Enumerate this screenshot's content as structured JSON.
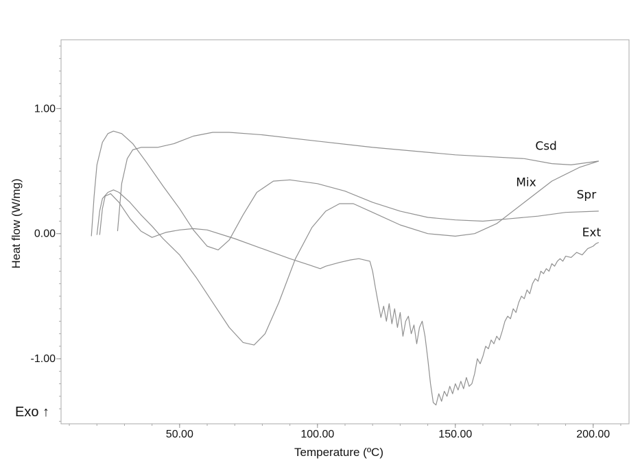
{
  "chart_data": {
    "type": "line",
    "xlabel": "Temperature (ºC)",
    "ylabel": "Heat flow (W/mg)",
    "annotation": "Exo ↑",
    "xlim": [
      7,
      213
    ],
    "ylim": [
      -1.52,
      1.55
    ],
    "x_ticks": [
      50,
      100,
      150,
      200
    ],
    "x_tick_labels": [
      "50.00",
      "100.00",
      "150.00",
      "200.00"
    ],
    "y_ticks": [
      1.0,
      0.0,
      -1.0
    ],
    "y_tick_labels": [
      "1.00",
      "0.00",
      "-1.00"
    ],
    "grid": false,
    "line_color": "#909090",
    "series": [
      {
        "name": "Csd",
        "label_x": 179,
        "label_y": 0.67,
        "points": [
          [
            27.5,
            0.02
          ],
          [
            29,
            0.4
          ],
          [
            31,
            0.6
          ],
          [
            33,
            0.67
          ],
          [
            36,
            0.69
          ],
          [
            42,
            0.69
          ],
          [
            48,
            0.72
          ],
          [
            55,
            0.78
          ],
          [
            62,
            0.81
          ],
          [
            68,
            0.81
          ],
          [
            80,
            0.79
          ],
          [
            100,
            0.74
          ],
          [
            120,
            0.69
          ],
          [
            150,
            0.63
          ],
          [
            175,
            0.6
          ],
          [
            185,
            0.56
          ],
          [
            192,
            0.55
          ],
          [
            202,
            0.58
          ]
        ]
      },
      {
        "name": "Mix",
        "label_x": 172,
        "label_y": 0.38,
        "points": [
          [
            18,
            -0.02
          ],
          [
            19,
            0.3
          ],
          [
            20,
            0.55
          ],
          [
            22,
            0.73
          ],
          [
            24,
            0.8
          ],
          [
            26,
            0.82
          ],
          [
            29,
            0.8
          ],
          [
            33,
            0.72
          ],
          [
            38,
            0.57
          ],
          [
            44,
            0.38
          ],
          [
            50,
            0.2
          ],
          [
            55,
            0.03
          ],
          [
            60,
            -0.1
          ],
          [
            64,
            -0.13
          ],
          [
            68,
            -0.05
          ],
          [
            73,
            0.15
          ],
          [
            78,
            0.33
          ],
          [
            84,
            0.42
          ],
          [
            90,
            0.43
          ],
          [
            100,
            0.4
          ],
          [
            110,
            0.34
          ],
          [
            120,
            0.25
          ],
          [
            130,
            0.18
          ],
          [
            140,
            0.13
          ],
          [
            150,
            0.11
          ],
          [
            160,
            0.1
          ],
          [
            170,
            0.12
          ],
          [
            180,
            0.14
          ],
          [
            190,
            0.17
          ],
          [
            202,
            0.18
          ]
        ]
      },
      {
        "name": "Spr",
        "label_x": 194,
        "label_y": 0.28,
        "points": [
          [
            20,
            -0.01
          ],
          [
            21,
            0.18
          ],
          [
            22,
            0.28
          ],
          [
            24,
            0.33
          ],
          [
            26,
            0.35
          ],
          [
            28,
            0.33
          ],
          [
            32,
            0.25
          ],
          [
            36,
            0.15
          ],
          [
            40,
            0.06
          ],
          [
            44,
            -0.04
          ],
          [
            50,
            -0.17
          ],
          [
            56,
            -0.35
          ],
          [
            62,
            -0.55
          ],
          [
            68,
            -0.75
          ],
          [
            73,
            -0.87
          ],
          [
            77,
            -0.89
          ],
          [
            81,
            -0.8
          ],
          [
            86,
            -0.55
          ],
          [
            92,
            -0.2
          ],
          [
            98,
            0.05
          ],
          [
            103,
            0.18
          ],
          [
            108,
            0.24
          ],
          [
            113,
            0.24
          ],
          [
            120,
            0.17
          ],
          [
            130,
            0.07
          ],
          [
            140,
            0.0
          ],
          [
            150,
            -0.02
          ],
          [
            157,
            0.0
          ],
          [
            165,
            0.08
          ],
          [
            175,
            0.25
          ],
          [
            185,
            0.42
          ],
          [
            195,
            0.53
          ],
          [
            202,
            0.58
          ]
        ]
      },
      {
        "name": "Ext",
        "label_x": 196,
        "label_y": -0.02,
        "points": [
          [
            21,
            -0.01
          ],
          [
            22,
            0.2
          ],
          [
            23,
            0.3
          ],
          [
            25,
            0.32
          ],
          [
            28,
            0.25
          ],
          [
            32,
            0.12
          ],
          [
            36,
            0.02
          ],
          [
            40,
            -0.03
          ],
          [
            45,
            0.01
          ],
          [
            50,
            0.03
          ],
          [
            55,
            0.04
          ],
          [
            60,
            0.03
          ],
          [
            70,
            -0.04
          ],
          [
            80,
            -0.12
          ],
          [
            90,
            -0.2
          ],
          [
            97,
            -0.25
          ],
          [
            101,
            -0.28
          ],
          [
            103,
            -0.26
          ],
          [
            108,
            -0.23
          ],
          [
            112,
            -0.21
          ],
          [
            115,
            -0.2
          ],
          [
            119,
            -0.22
          ],
          [
            120,
            -0.3
          ],
          [
            121,
            -0.43
          ],
          [
            122,
            -0.55
          ],
          [
            123,
            -0.67
          ],
          [
            124,
            -0.58
          ],
          [
            125,
            -0.7
          ],
          [
            126,
            -0.56
          ],
          [
            127,
            -0.72
          ],
          [
            128,
            -0.6
          ],
          [
            129,
            -0.75
          ],
          [
            130,
            -0.63
          ],
          [
            131,
            -0.82
          ],
          [
            132,
            -0.7
          ],
          [
            133,
            -0.66
          ],
          [
            134,
            -0.8
          ],
          [
            135,
            -0.73
          ],
          [
            136,
            -0.88
          ],
          [
            137,
            -0.75
          ],
          [
            138,
            -0.7
          ],
          [
            139,
            -0.82
          ],
          [
            140,
            -1.0
          ],
          [
            141,
            -1.2
          ],
          [
            142,
            -1.35
          ],
          [
            143,
            -1.37
          ],
          [
            144,
            -1.28
          ],
          [
            145,
            -1.34
          ],
          [
            146,
            -1.26
          ],
          [
            147,
            -1.3
          ],
          [
            148,
            -1.22
          ],
          [
            149,
            -1.28
          ],
          [
            150,
            -1.2
          ],
          [
            151,
            -1.25
          ],
          [
            152,
            -1.18
          ],
          [
            153,
            -1.24
          ],
          [
            154,
            -1.15
          ],
          [
            155,
            -1.22
          ],
          [
            156,
            -1.2
          ],
          [
            157,
            -1.12
          ],
          [
            158,
            -1.0
          ],
          [
            159,
            -1.04
          ],
          [
            160,
            -0.98
          ],
          [
            161,
            -0.9
          ],
          [
            162,
            -0.92
          ],
          [
            163,
            -0.85
          ],
          [
            164,
            -0.88
          ],
          [
            165,
            -0.82
          ],
          [
            166,
            -0.85
          ],
          [
            167,
            -0.78
          ],
          [
            168,
            -0.7
          ],
          [
            169,
            -0.66
          ],
          [
            170,
            -0.68
          ],
          [
            171,
            -0.6
          ],
          [
            172,
            -0.63
          ],
          [
            173,
            -0.55
          ],
          [
            174,
            -0.5
          ],
          [
            175,
            -0.52
          ],
          [
            176,
            -0.45
          ],
          [
            177,
            -0.48
          ],
          [
            178,
            -0.4
          ],
          [
            179,
            -0.36
          ],
          [
            180,
            -0.38
          ],
          [
            181,
            -0.3
          ],
          [
            182,
            -0.32
          ],
          [
            183,
            -0.28
          ],
          [
            184,
            -0.3
          ],
          [
            185,
            -0.24
          ],
          [
            186,
            -0.26
          ],
          [
            187,
            -0.22
          ],
          [
            188,
            -0.2
          ],
          [
            189,
            -0.22
          ],
          [
            190,
            -0.18
          ],
          [
            192,
            -0.19
          ],
          [
            194,
            -0.15
          ],
          [
            196,
            -0.17
          ],
          [
            198,
            -0.12
          ],
          [
            200,
            -0.1
          ],
          [
            201,
            -0.08
          ],
          [
            202,
            -0.07
          ]
        ]
      }
    ]
  }
}
